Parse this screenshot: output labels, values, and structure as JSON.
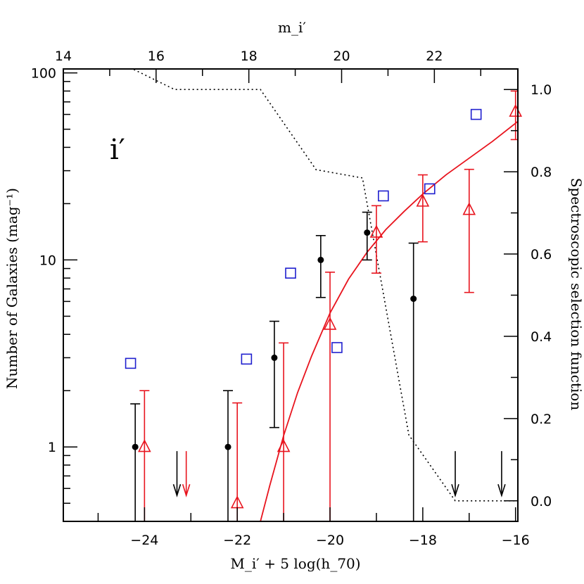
{
  "chart_data": {
    "type": "scatter",
    "panel_label": "i′",
    "xlabel": "M_i′ + 5 log(h_70)",
    "ylabel": "Number of Galaxies  (mag⁻¹)",
    "y2label": "Spectroscopic selection function",
    "top_xlabel": "m_i′",
    "xlim": [
      -25.75,
      -15.95
    ],
    "ylim": [
      0.4,
      105
    ],
    "yscale": "log",
    "y2lim": [
      -0.05,
      1.05
    ],
    "top_xlim": [
      14.0,
      23.8
    ],
    "x_ticks": [
      -24,
      -22,
      -20,
      -18,
      -16
    ],
    "y_ticks": [
      1,
      10,
      100
    ],
    "y2_ticks": [
      0.0,
      0.2,
      0.4,
      0.6,
      0.8,
      1.0
    ],
    "top_x_ticks": [
      14,
      16,
      18,
      20,
      22
    ],
    "x_tick_labels": [
      "−24",
      "−22",
      "−20",
      "−18",
      "−16"
    ],
    "y_tick_labels": [
      "1",
      "10",
      "100"
    ],
    "y2_tick_labels": [
      "0.0",
      "0.2",
      "0.4",
      "0.6",
      "0.8",
      "1.0"
    ],
    "top_x_tick_labels": [
      "14",
      "16",
      "18",
      "20",
      "22"
    ],
    "colors": {
      "black": "#000000",
      "red": "#e8141e",
      "blue": "#1f1fcf"
    },
    "series": [
      {
        "marker": "filled-circle",
        "color": "black",
        "points": [
          {
            "x": -24.2,
            "y": 1.0,
            "lo": 0.4,
            "hi": 1.7
          },
          {
            "x": -22.2,
            "y": 1.0,
            "lo": 0.4,
            "hi": 2.0
          },
          {
            "x": -21.2,
            "y": 3.0,
            "lo": 1.27,
            "hi": 4.7
          },
          {
            "x": -20.2,
            "y": 10.0,
            "lo": 6.3,
            "hi": 13.5
          },
          {
            "x": -19.2,
            "y": 14.0,
            "lo": 10.0,
            "hi": 18.0
          },
          {
            "x": -18.2,
            "y": 6.2,
            "lo": 0.4,
            "hi": 12.3
          }
        ]
      },
      {
        "marker": "open-triangle",
        "color": "red",
        "points": [
          {
            "x": -24.0,
            "y": 1.0,
            "lo": 0.4,
            "hi": 2.0
          },
          {
            "x": -22.0,
            "y": 0.5,
            "lo": 0.4,
            "hi": 1.72
          },
          {
            "x": -21.0,
            "y": 1.0,
            "lo": 0.4,
            "hi": 3.6
          },
          {
            "x": -20.0,
            "y": 4.5,
            "lo": 0.4,
            "hi": 8.6
          },
          {
            "x": -19.0,
            "y": 14.0,
            "lo": 8.5,
            "hi": 19.5
          },
          {
            "x": -18.0,
            "y": 20.5,
            "lo": 12.5,
            "hi": 28.5
          },
          {
            "x": -17.0,
            "y": 18.5,
            "lo": 6.7,
            "hi": 30.5
          },
          {
            "x": -16.0,
            "y": 62.0,
            "lo": 44.0,
            "hi": 80.0
          }
        ]
      },
      {
        "marker": "open-square",
        "color": "blue",
        "points": [
          {
            "x": -24.3,
            "y": 2.8
          },
          {
            "x": -21.8,
            "y": 2.95
          },
          {
            "x": -20.85,
            "y": 8.5
          },
          {
            "x": -19.85,
            "y": 3.4
          },
          {
            "x": -18.85,
            "y": 22.0
          },
          {
            "x": -17.85,
            "y": 24.0
          },
          {
            "x": -16.85,
            "y": 60.0
          }
        ]
      }
    ],
    "upper_limits": [
      {
        "x": -23.3,
        "color": "black",
        "y_top": 0.95,
        "y_bottom": 0.55
      },
      {
        "x": -23.1,
        "color": "red",
        "y_top": 0.95,
        "y_bottom": 0.55
      },
      {
        "x": -17.3,
        "color": "black",
        "y_top": 0.95,
        "y_bottom": 0.55
      },
      {
        "x": -16.3,
        "color": "black",
        "y_top": 0.95,
        "y_bottom": 0.55
      }
    ],
    "fit_curve": {
      "color": "red",
      "points": [
        [
          -21.5,
          0.4
        ],
        [
          -21.3,
          0.62
        ],
        [
          -21.0,
          1.15
        ],
        [
          -20.7,
          1.95
        ],
        [
          -20.4,
          3.05
        ],
        [
          -20.0,
          5.2
        ],
        [
          -19.6,
          7.9
        ],
        [
          -19.2,
          11.0
        ],
        [
          -18.8,
          14.5
        ],
        [
          -18.4,
          18.2
        ],
        [
          -18.0,
          22.5
        ],
        [
          -17.5,
          28.5
        ],
        [
          -17.0,
          35.0
        ],
        [
          -16.5,
          43.0
        ],
        [
          -15.95,
          55.0
        ]
      ]
    },
    "selection_function": {
      "style": "dotted",
      "points": [
        [
          -25.7,
          1.13
        ],
        [
          -23.35,
          1.0
        ],
        [
          -21.5,
          1.0
        ],
        [
          -20.3,
          0.805
        ],
        [
          -19.3,
          0.785
        ],
        [
          -18.3,
          0.16
        ],
        [
          -17.3,
          0.0
        ],
        [
          -16.0,
          0.0
        ]
      ]
    }
  }
}
